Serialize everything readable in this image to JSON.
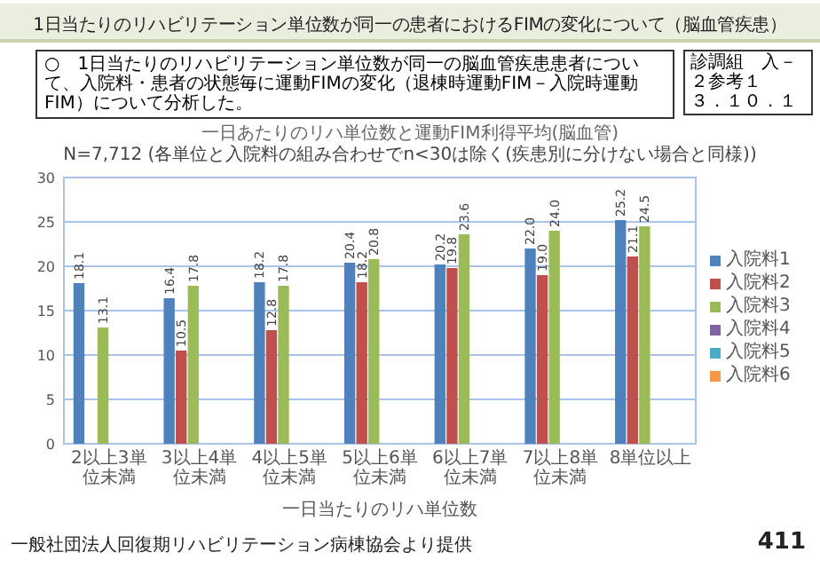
{
  "chart_data": {
    "type": "bar",
    "title": "一日あたりのリハ単位数と運動FIM利得平均(脳血管)",
    "subtitle": "N=7,712 (各単位と入院料の組み合わせでn<30は除く(疾患別に分けない場合と同様))",
    "xlabel": "一日当たりのリハ単位数",
    "categories": [
      "2以上3単位未満",
      "3以上4単位未満",
      "4以上5単位未満",
      "5以上6単位未満",
      "6以上7単位未満",
      "7以上8単位未満",
      "8単位以上"
    ],
    "series": [
      {
        "name": "入院料1",
        "color": "#4f81bd",
        "values": [
          18.1,
          16.4,
          18.2,
          20.4,
          20.2,
          22.0,
          25.2
        ],
        "value_labels": [
          "18.1",
          "16.4",
          "18.2",
          "20.4",
          "20.2",
          "22.0",
          "25.2"
        ]
      },
      {
        "name": "入院料2",
        "color": "#c0504d",
        "values": [
          null,
          10.5,
          12.8,
          18.2,
          19.8,
          19.0,
          21.1
        ],
        "value_labels": [
          null,
          "10.5",
          "12.8",
          "18.2",
          "19.8",
          "19.0",
          "21.1"
        ]
      },
      {
        "name": "入院料3",
        "color": "#9bbb59",
        "values": [
          13.1,
          17.8,
          17.8,
          20.8,
          23.6,
          24.0,
          24.5
        ],
        "value_labels": [
          "13.1",
          "17.8",
          "17.8",
          "20.8",
          "23.6",
          "24.0",
          "24.5"
        ]
      },
      {
        "name": "入院料4",
        "color": "#8064a2",
        "values": [
          null,
          null,
          null,
          null,
          null,
          null,
          null
        ]
      },
      {
        "name": "入院料5",
        "color": "#4bacc6",
        "values": [
          null,
          null,
          null,
          null,
          null,
          null,
          null
        ]
      },
      {
        "name": "入院料6",
        "color": "#f79646",
        "values": [
          null,
          null,
          null,
          null,
          null,
          null,
          null
        ]
      }
    ],
    "ylim": [
      0,
      30
    ],
    "yticks": [
      0,
      5,
      10,
      15,
      20,
      25,
      30
    ],
    "grid": "y",
    "legend": "right",
    "annotations": [
      "1日当たりのリハビリテーション単位数が同一の患者におけるFIMの変化について（脳血管疾患）",
      "○　1日当たりのリハビリテーション単位数が同一の脳血管疾患患者について、入院料・患者の状態毎に運動FIMの変化（退棟時運動FIM－入院時運動FIM）について分析した。",
      "診調組　入－２参考１",
      "３．１０．１",
      "一般社団法人回復期リハビリテーション病棟協会より提供",
      "411"
    ]
  }
}
